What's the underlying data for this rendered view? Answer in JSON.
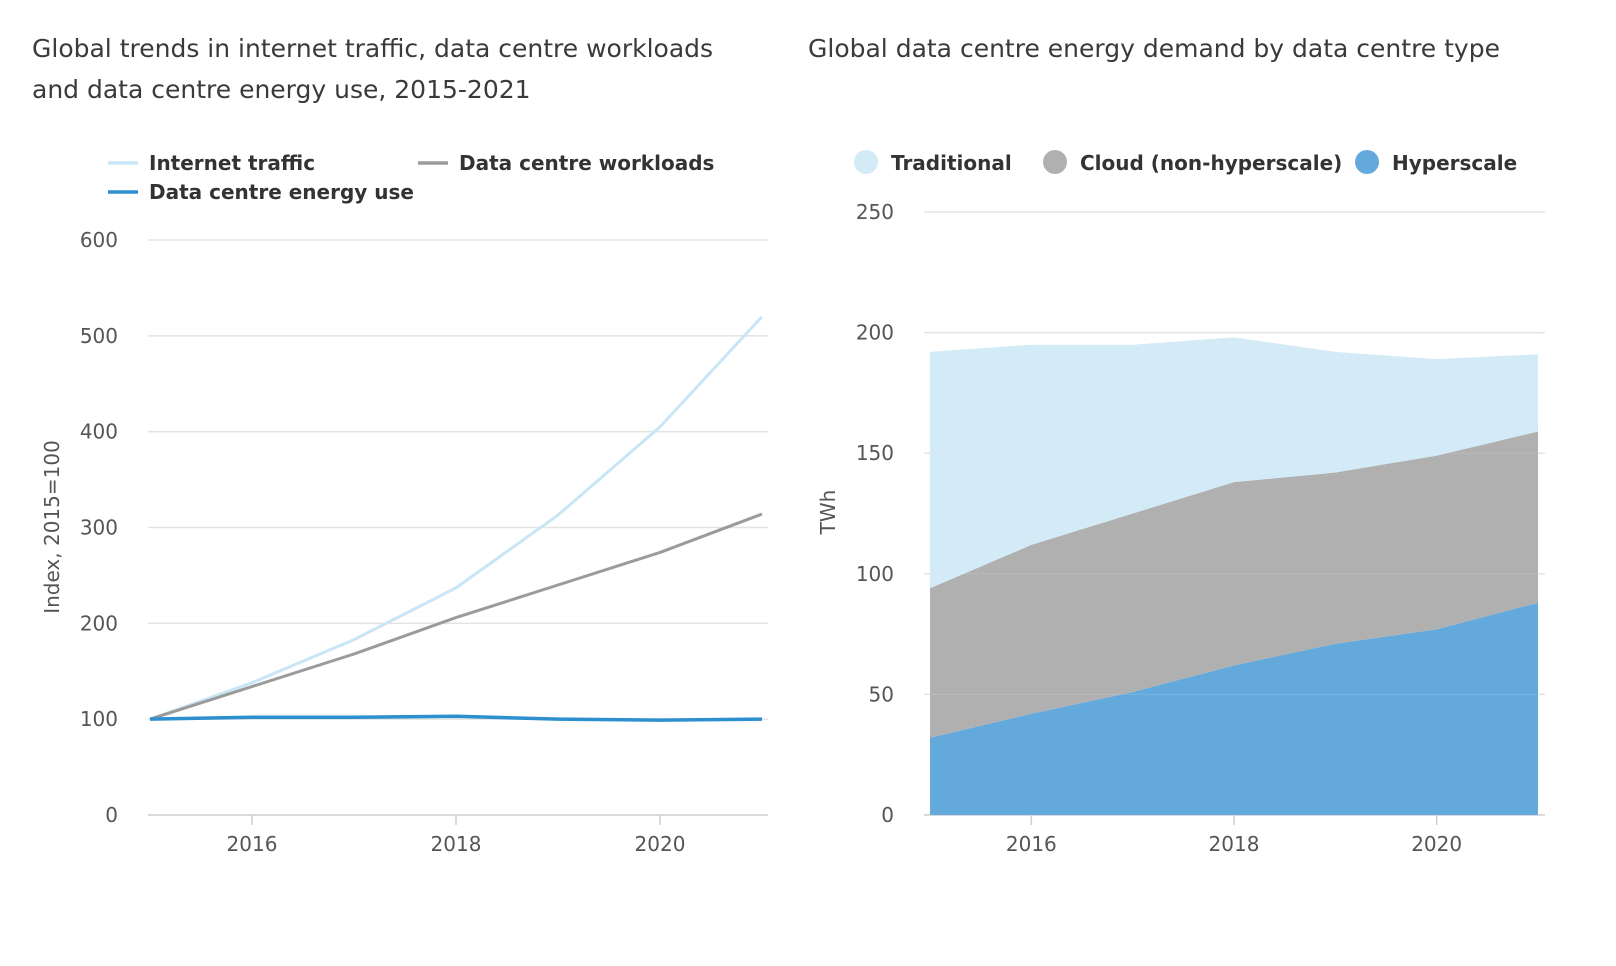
{
  "colors": {
    "internet_traffic": "#c9e6f6",
    "data_centre_workloads": "#9b9b9b",
    "data_centre_energy_use": "#2d8fd0",
    "traditional": "#d3eaf7",
    "cloud": "#b0b0b0",
    "hyperscale": "#63a9dc",
    "grid": "#e3e3e3"
  },
  "chart_data": [
    {
      "type": "line",
      "title": "Global trends in internet traffic, data centre workloads and data centre energy use, 2015-2021",
      "xlabel": "",
      "ylabel": "Index, 2015=100",
      "x": [
        2015,
        2016,
        2017,
        2018,
        2019,
        2020,
        2021
      ],
      "xticks": [
        "2016",
        "2018",
        "2020"
      ],
      "yticks": [
        "0",
        "100",
        "200",
        "300",
        "400",
        "500",
        "600"
      ],
      "xlim": [
        2015,
        2021
      ],
      "ylim": [
        0,
        600
      ],
      "grid": true,
      "legend_position": "top",
      "series": [
        {
          "name": "Internet traffic",
          "values": [
            100,
            138,
            183,
            237,
            313,
            405,
            520
          ]
        },
        {
          "name": "Data centre workloads",
          "values": [
            100,
            134,
            168,
            206,
            240,
            274,
            314
          ]
        },
        {
          "name": "Data centre energy use",
          "values": [
            100,
            102,
            102,
            103,
            100,
            99,
            100
          ]
        }
      ]
    },
    {
      "type": "area",
      "stacked": true,
      "title": "Global data centre energy demand by data centre type",
      "xlabel": "",
      "ylabel": "TWh",
      "x": [
        2015,
        2016,
        2017,
        2018,
        2019,
        2020,
        2021
      ],
      "xticks": [
        "2016",
        "2018",
        "2020"
      ],
      "yticks": [
        "0",
        "50",
        "100",
        "150",
        "200",
        "250"
      ],
      "xlim": [
        2015,
        2021
      ],
      "ylim": [
        0,
        250
      ],
      "grid": true,
      "legend_position": "top",
      "series": [
        {
          "name": "Traditional",
          "values": [
            98,
            83,
            70,
            60,
            50,
            40,
            32
          ]
        },
        {
          "name": "Cloud (non-hyperscale)",
          "values": [
            62,
            70,
            74,
            76,
            71,
            72,
            71
          ]
        },
        {
          "name": "Hyperscale",
          "values": [
            32,
            42,
            51,
            62,
            71,
            77,
            88
          ]
        }
      ]
    }
  ]
}
